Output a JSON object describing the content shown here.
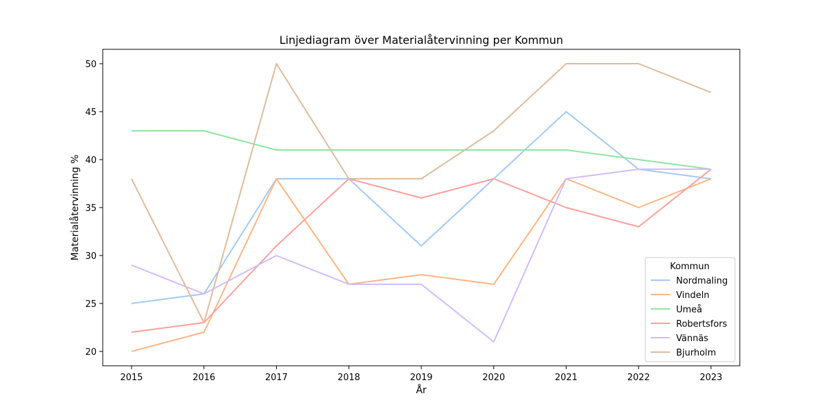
{
  "chart_data": {
    "type": "line",
    "title": "Linjediagram över Materialåtervinning per Kommun",
    "xlabel": "År",
    "ylabel": "Materialåtervinning %",
    "x": [
      2015,
      2016,
      2017,
      2018,
      2019,
      2020,
      2021,
      2022,
      2023
    ],
    "x_ticks": [
      "2015",
      "2016",
      "2017",
      "2018",
      "2019",
      "2020",
      "2021",
      "2022",
      "2023"
    ],
    "ylim": [
      18.5,
      51.5
    ],
    "y_ticks": [
      "20",
      "25",
      "30",
      "35",
      "40",
      "45",
      "50"
    ],
    "grid": false,
    "legend": {
      "title": "Kommun",
      "placement": "bottom-right"
    },
    "series": [
      {
        "name": "Nordmaling",
        "color": "#a1c9f4",
        "values": [
          25,
          26,
          38,
          38,
          31,
          38,
          45,
          39,
          38
        ]
      },
      {
        "name": "Vindeln",
        "color": "#ffb482",
        "values": [
          20,
          22,
          38,
          27,
          28,
          27,
          38,
          35,
          38
        ]
      },
      {
        "name": "Umeå",
        "color": "#8de5a1",
        "values": [
          43,
          43,
          41,
          41,
          41,
          41,
          41,
          40,
          39
        ]
      },
      {
        "name": "Robertsfors",
        "color": "#ff9f9b",
        "values": [
          22,
          23,
          31,
          38,
          36,
          38,
          35,
          33,
          39
        ]
      },
      {
        "name": "Vännäs",
        "color": "#d0bbff",
        "values": [
          29,
          26,
          30,
          27,
          27,
          21,
          38,
          39,
          39
        ]
      },
      {
        "name": "Bjurholm",
        "color": "#debb9b",
        "values": [
          38,
          23,
          50,
          38,
          38,
          43,
          50,
          50,
          47
        ]
      }
    ]
  }
}
